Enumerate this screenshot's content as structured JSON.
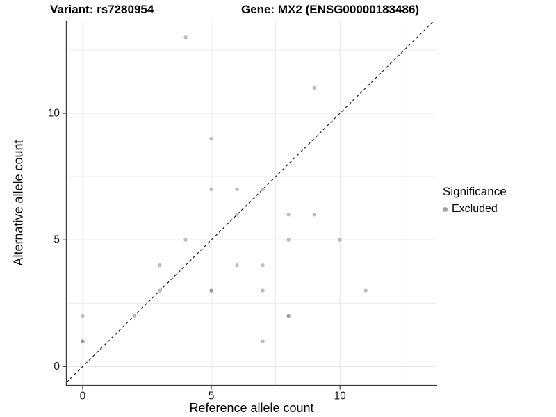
{
  "header": {
    "variant_title": "Variant: rs7280954",
    "gene_title": "Gene: MX2 (ENSG00000183486)"
  },
  "legend": {
    "title": "Significance",
    "items": [
      {
        "label": "Excluded",
        "color": "#a0a0a0"
      }
    ],
    "position": "right"
  },
  "chart_data": {
    "type": "scatter",
    "title": "Variant: rs7280954  Gene: MX2 (ENSG00000183486)",
    "xlabel": "Reference allele count",
    "ylabel": "Alternative allele count",
    "xlim": [
      -0.62,
      13.75
    ],
    "ylim": [
      -0.73,
      13.65
    ],
    "x_ticks": [
      0,
      5,
      10
    ],
    "y_ticks": [
      0,
      5,
      10
    ],
    "x_minor_ticks": [
      2.5,
      7.5,
      12.5
    ],
    "y_minor_ticks": [
      2.5,
      7.5,
      12.5
    ],
    "grid": true,
    "legend_title": "Significance",
    "series": [
      {
        "name": "Excluded",
        "point_color": "#bdbdbd",
        "overlap_point_color": "#9b9b9b",
        "points": [
          {
            "x": 0,
            "y": 1,
            "n": 2
          },
          {
            "x": 0,
            "y": 2,
            "n": 1
          },
          {
            "x": 2,
            "y": 2,
            "n": 1
          },
          {
            "x": 3,
            "y": 3,
            "n": 1
          },
          {
            "x": 3,
            "y": 4,
            "n": 1
          },
          {
            "x": 4,
            "y": 5,
            "n": 1
          },
          {
            "x": 4,
            "y": 13,
            "n": 1
          },
          {
            "x": 5,
            "y": 3,
            "n": 2
          },
          {
            "x": 5,
            "y": 7,
            "n": 1
          },
          {
            "x": 5,
            "y": 9,
            "n": 1
          },
          {
            "x": 6,
            "y": 4,
            "n": 1
          },
          {
            "x": 6,
            "y": 6,
            "n": 1
          },
          {
            "x": 6,
            "y": 7,
            "n": 1
          },
          {
            "x": 7,
            "y": 1,
            "n": 1
          },
          {
            "x": 7,
            "y": 3,
            "n": 1
          },
          {
            "x": 7,
            "y": 4,
            "n": 1
          },
          {
            "x": 7,
            "y": 7,
            "n": 1
          },
          {
            "x": 8,
            "y": 2,
            "n": 2
          },
          {
            "x": 8,
            "y": 5,
            "n": 1
          },
          {
            "x": 8,
            "y": 6,
            "n": 1
          },
          {
            "x": 9,
            "y": 6,
            "n": 1
          },
          {
            "x": 9,
            "y": 11,
            "n": 1
          },
          {
            "x": 10,
            "y": 5,
            "n": 1
          },
          {
            "x": 11,
            "y": 3,
            "n": 1
          }
        ]
      }
    ],
    "identity_line": {
      "style": "dashed",
      "equation": "y = x",
      "color": "#1a1a1a"
    },
    "colors": {
      "grid": "#e8e8e8",
      "axis": "#3c3c3c",
      "tick_text": "#1a1a1a"
    }
  }
}
